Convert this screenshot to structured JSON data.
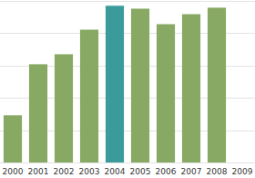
{
  "chart_data": {
    "type": "bar",
    "categories": [
      "2000",
      "2001",
      "2002",
      "2003",
      "2004",
      "2005",
      "2006",
      "2007",
      "2008",
      "2009"
    ],
    "values": [
      1.46,
      3.04,
      3.35,
      4.11,
      4.85,
      4.76,
      4.28,
      4.59,
      4.79,
      null
    ],
    "colors": [
      "#87a963",
      "#87a963",
      "#87a963",
      "#87a963",
      "#3a9b9a",
      "#87a963",
      "#87a963",
      "#87a963",
      "#87a963",
      "#87a963"
    ],
    "ylim": [
      0,
      5
    ],
    "yticks": [
      0,
      1,
      2,
      3,
      4,
      5
    ],
    "grid": true,
    "tick_labels": "x"
  }
}
